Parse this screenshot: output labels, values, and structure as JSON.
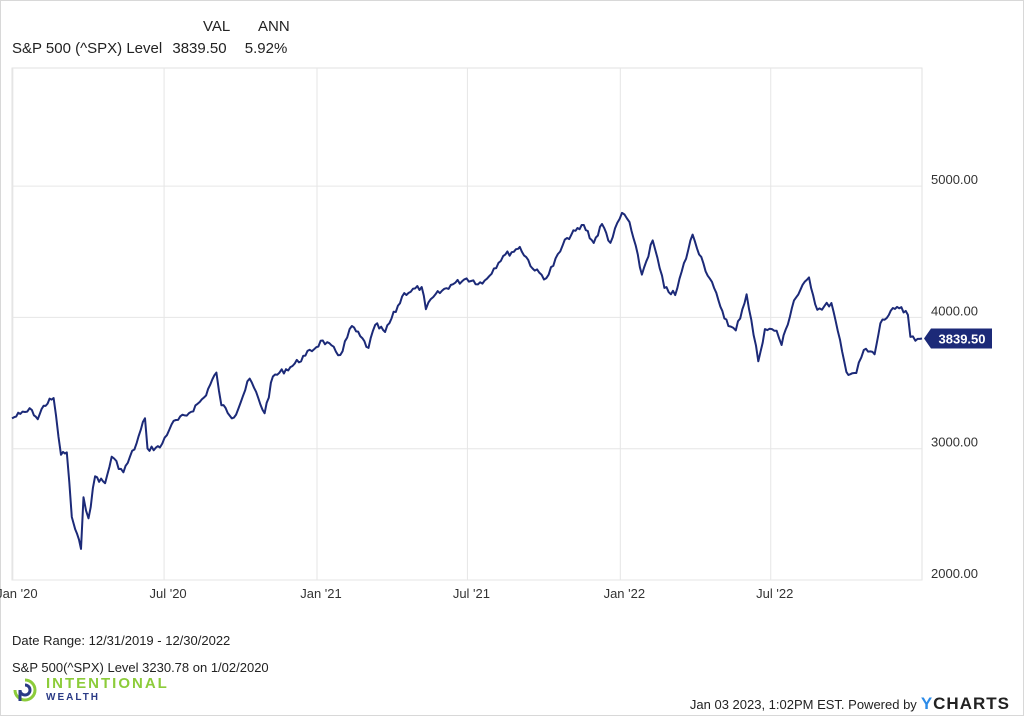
{
  "legend": {
    "col_val": "VAL",
    "col_ann": "ANN",
    "series_name": "S&P 500 (^SPX) Level",
    "value": "3839.50",
    "annualized": "5.92%"
  },
  "chart_data": {
    "type": "line",
    "title": "",
    "xlabel": "",
    "ylabel": "",
    "x_range": [
      "2019-12-31",
      "2022-12-30"
    ],
    "ylim": [
      2000,
      5900
    ],
    "y_ticks": [
      2000,
      3000,
      4000,
      5000
    ],
    "y_tick_labels": [
      "2000.00",
      "3000.00",
      "4000.00",
      "5000.00"
    ],
    "x_ticks": [
      "2020-01-01",
      "2020-07-01",
      "2021-01-01",
      "2021-07-01",
      "2022-01-01",
      "2022-07-01"
    ],
    "x_tick_labels": [
      "Jan '20",
      "Jul '20",
      "Jan '21",
      "Jul '21",
      "Jan '22",
      "Jul '22"
    ],
    "grid": true,
    "line_color": "#1c2a78",
    "series": [
      {
        "name": "S&P 500 (^SPX) Level",
        "x": [
          "2019-12-31",
          "2020-01-10",
          "2020-01-24",
          "2020-01-31",
          "2020-02-07",
          "2020-02-19",
          "2020-02-28",
          "2020-03-06",
          "2020-03-09",
          "2020-03-12",
          "2020-03-16",
          "2020-03-23",
          "2020-03-26",
          "2020-04-01",
          "2020-04-09",
          "2020-04-21",
          "2020-04-29",
          "2020-05-13",
          "2020-05-29",
          "2020-06-08",
          "2020-06-11",
          "2020-06-26",
          "2020-07-10",
          "2020-07-31",
          "2020-08-18",
          "2020-09-02",
          "2020-09-08",
          "2020-09-23",
          "2020-10-12",
          "2020-10-30",
          "2020-11-09",
          "2020-11-30",
          "2020-12-18",
          "2021-01-08",
          "2021-01-29",
          "2021-02-12",
          "2021-03-04",
          "2021-03-12",
          "2021-03-24",
          "2021-04-16",
          "2021-05-07",
          "2021-05-12",
          "2021-05-21",
          "2021-06-11",
          "2021-06-30",
          "2021-07-19",
          "2021-08-13",
          "2021-08-31",
          "2021-09-02",
          "2021-09-20",
          "2021-10-04",
          "2021-10-29",
          "2021-11-18",
          "2021-11-30",
          "2021-12-10",
          "2021-12-20",
          "2022-01-03",
          "2022-01-12",
          "2022-01-27",
          "2022-02-09",
          "2022-02-23",
          "2022-03-08",
          "2022-03-29",
          "2022-04-11",
          "2022-04-29",
          "2022-05-11",
          "2022-05-20",
          "2022-06-02",
          "2022-06-16",
          "2022-06-24",
          "2022-07-08",
          "2022-07-14",
          "2022-07-29",
          "2022-08-16",
          "2022-08-26",
          "2022-09-12",
          "2022-09-30",
          "2022-10-12",
          "2022-10-21",
          "2022-11-03",
          "2022-11-10",
          "2022-11-30",
          "2022-12-13",
          "2022-12-16",
          "2022-12-22",
          "2022-12-30"
        ],
        "y": [
          3230.78,
          3265,
          3295,
          3225,
          3327,
          3386,
          2954,
          2972,
          2746,
          2480,
          2386,
          2237,
          2630,
          2470,
          2790,
          2737,
          2939,
          2820,
          3044,
          3232,
          3002,
          3009,
          3185,
          3271,
          3390,
          3580,
          3331,
          3237,
          3534,
          3270,
          3550,
          3622,
          3709,
          3824,
          3714,
          3935,
          3768,
          3943,
          3889,
          4185,
          4232,
          4063,
          4156,
          4247,
          4297,
          4258,
          4468,
          4523,
          4537,
          4357,
          4300,
          4605,
          4704,
          4567,
          4712,
          4568,
          4796,
          4726,
          4326,
          4587,
          4225,
          4170,
          4631,
          4412,
          4131,
          3935,
          3901,
          4176,
          3666,
          3911,
          3899,
          3790,
          4130,
          4305,
          4058,
          4110,
          3585,
          3577,
          3752,
          3719,
          3956,
          4080,
          4019,
          3852,
          3822,
          3839.5
        ]
      }
    ],
    "last_value_label": "3839.50"
  },
  "footer": {
    "date_range": "Date Range: 12/31/2019 - 12/30/2022",
    "start_note": "S&P 500(^SPX) Level 3230.78 on 1/02/2020",
    "timestamp": "Jan 03 2023, 1:02PM EST. Powered by",
    "ycharts_y": "Y",
    "ycharts_rest": "CHARTS"
  },
  "logo": {
    "line1": "INTENTIONAL",
    "line2": "WEALTH",
    "colors": {
      "green": "#8ccc3a",
      "navy": "#2a3a86"
    }
  }
}
